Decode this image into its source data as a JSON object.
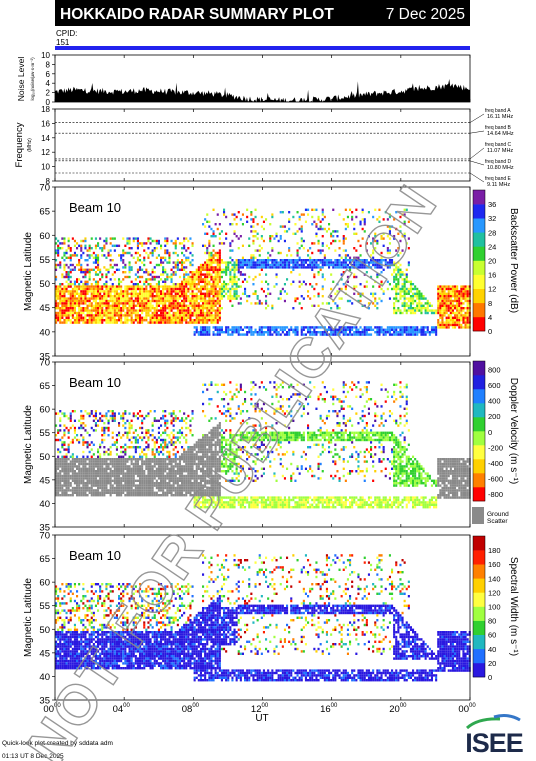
{
  "header": {
    "title": "HOKKAIDO RADAR SUMMARY PLOT",
    "date": "7 Dec 2025",
    "cpid_label": "CPID:",
    "cpid_value": "151"
  },
  "colors": {
    "title_bar": "#000000",
    "cpid_bar": "#2222ee",
    "ground_scatter": "#8a8a8a",
    "watermark": "#8c8c8c"
  },
  "chart_data": [
    {
      "type": "area",
      "id": "noise",
      "ylabel": "Noise Level",
      "ylabel_small": "log₁₀(noise/µw·s·m⁻²)",
      "ylim": [
        0,
        10
      ],
      "yticks": [
        "0",
        "2",
        "4",
        "6",
        "8",
        "10"
      ],
      "x_hours": [
        0,
        1,
        2,
        3,
        4,
        5,
        6,
        7,
        8,
        9,
        10,
        11,
        12,
        13,
        14,
        15,
        16,
        17,
        18,
        19,
        20,
        21,
        22,
        23,
        24
      ],
      "values": [
        2.2,
        2.6,
        2.4,
        2.3,
        2.2,
        2.5,
        2.3,
        2.1,
        2.0,
        1.8,
        1.4,
        0.8,
        0.5,
        0.4,
        0.4,
        0.5,
        0.7,
        1.2,
        1.6,
        2.0,
        2.3,
        2.8,
        3.2,
        3.6,
        2.8
      ]
    },
    {
      "type": "line",
      "id": "frequency",
      "ylabel": "Frequency",
      "yunit": "(MHz)",
      "ylim": [
        8,
        18
      ],
      "yticks": [
        "8",
        "10",
        "12",
        "14",
        "16",
        "18"
      ],
      "bands": [
        {
          "label": "freq band A",
          "value_label": "16.11 MHz",
          "mhz": 16.11
        },
        {
          "label": "freq band B",
          "value_label": "14.64 MHz",
          "mhz": 14.64
        },
        {
          "label": "freq band C",
          "value_label": "11.07 MHz",
          "mhz": 11.07
        },
        {
          "label": "freq band D",
          "value_label": "10.80 MHz",
          "mhz": 10.8
        },
        {
          "label": "freq band E",
          "value_label": "9.11 MHz",
          "mhz": 9.11
        }
      ]
    },
    {
      "type": "heatmap",
      "id": "power",
      "beam_label": "Beam 10",
      "ylabel": "Magnetic Latitude",
      "ylim": [
        35,
        70
      ],
      "yticks": [
        "35",
        "40",
        "45",
        "50",
        "55",
        "60",
        "65",
        "70"
      ],
      "colorbar_label": "Backscatter Power (dB)",
      "colorbar_ticks": [
        "0",
        "4",
        "8",
        "12",
        "16",
        "20",
        "24",
        "28",
        "32",
        "36"
      ],
      "colorbar_colors": [
        "#ff0000",
        "#ff7800",
        "#ffd200",
        "#ffff30",
        "#c8ff30",
        "#30d030",
        "#20c0a0",
        "#2898ff",
        "#1e28f0",
        "#7a1ea6"
      ]
    },
    {
      "type": "heatmap",
      "id": "velocity",
      "beam_label": "Beam 10",
      "ylabel": "Magnetic Latitude",
      "ylim": [
        35,
        70
      ],
      "yticks": [
        "35",
        "40",
        "45",
        "50",
        "55",
        "60",
        "65",
        "70"
      ],
      "colorbar_label": "Doppler Velocity (m s⁻¹)",
      "colorbar_ticks": [
        "-800",
        "-600",
        "-400",
        "-200",
        "0",
        "200",
        "400",
        "600",
        "800"
      ],
      "colorbar_colors": [
        "#ff0000",
        "#ff8000",
        "#ffd000",
        "#ffff40",
        "#a0ff40",
        "#30d030",
        "#20b8c0",
        "#2080ff",
        "#2020e0",
        "#5010a0"
      ],
      "ground_scatter_label": [
        "Ground",
        "Scatter"
      ]
    },
    {
      "type": "heatmap",
      "id": "width",
      "beam_label": "Beam 10",
      "ylabel": "Magnetic Latitude",
      "ylim": [
        35,
        70
      ],
      "yticks": [
        "35",
        "40",
        "45",
        "50",
        "55",
        "60",
        "65",
        "70"
      ],
      "colorbar_label": "Spectral Width (m s⁻¹)",
      "colorbar_ticks": [
        "0",
        "20",
        "40",
        "60",
        "80",
        "100",
        "120",
        "140",
        "160",
        "180"
      ],
      "colorbar_colors": [
        "#2a18e0",
        "#2070ff",
        "#20b8c0",
        "#30d030",
        "#a0ff40",
        "#ffff40",
        "#ffd000",
        "#ff8000",
        "#ff2000",
        "#c00000"
      ]
    }
  ],
  "xaxis": {
    "label": "UT",
    "xlim": [
      0,
      24
    ],
    "ticks": [
      {
        "h": "00",
        "m": "00",
        "v": 0
      },
      {
        "h": "04",
        "m": "00",
        "v": 4
      },
      {
        "h": "08",
        "m": "00",
        "v": 8
      },
      {
        "h": "12",
        "m": "00",
        "v": 12
      },
      {
        "h": "16",
        "m": "00",
        "v": 16
      },
      {
        "h": "20",
        "m": "00",
        "v": 20
      },
      {
        "h": "00",
        "m": "00",
        "v": 24
      }
    ]
  },
  "footer": {
    "line1": "Quick-look plot created by sddata adm",
    "line2": "01:13 UT  8 Dec 2025",
    "logo": "ISEE"
  },
  "watermark": "NOT FOR PUBLICATION"
}
